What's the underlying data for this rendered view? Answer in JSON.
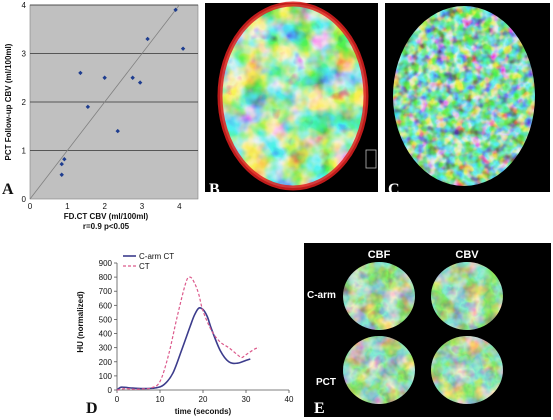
{
  "figure": {
    "panel_labels": [
      "A",
      "B",
      "C",
      "D",
      "E"
    ]
  },
  "chart_data": [
    {
      "type": "scatter",
      "panel": "A",
      "xlabel": "FD.CT CBV (ml/100ml)",
      "ylabel": "PCT Follow-up CBV (ml/100ml)",
      "caption": "r=0.9 p<0.05",
      "xlim": [
        0,
        4.5
      ],
      "ylim": [
        0,
        4.0
      ],
      "xticks": [
        "0",
        "1",
        "2",
        "3",
        "4"
      ],
      "yticks": [
        "0",
        "1",
        "2",
        "3",
        "4"
      ],
      "grid": true,
      "identity_line": true,
      "points": [
        [
          0.85,
          0.5
        ],
        [
          0.85,
          0.72
        ],
        [
          0.92,
          0.82
        ],
        [
          1.35,
          2.6
        ],
        [
          1.55,
          1.9
        ],
        [
          2.0,
          2.5
        ],
        [
          2.35,
          1.4
        ],
        [
          2.75,
          2.5
        ],
        [
          2.95,
          2.4
        ],
        [
          3.15,
          3.3
        ],
        [
          3.9,
          3.9
        ],
        [
          4.1,
          3.1
        ]
      ]
    },
    {
      "type": "line",
      "panel": "D",
      "xlabel": "time (seconds)",
      "ylabel": "HU (normalized)",
      "xlim": [
        0,
        40
      ],
      "ylim": [
        0,
        900
      ],
      "xticks": [
        "0",
        "10",
        "20",
        "30",
        "40"
      ],
      "yticks": [
        "0",
        "100",
        "200",
        "300",
        "400",
        "500",
        "600",
        "700",
        "800",
        "900"
      ],
      "legend_position": "top-left",
      "series": [
        {
          "name": "C-arm CT",
          "color": "#3c3c8c",
          "style": "solid",
          "x": [
            0,
            1,
            3,
            6,
            9,
            11,
            13,
            15,
            17,
            18,
            19,
            20,
            21,
            22,
            24,
            26,
            28,
            30,
            31
          ],
          "y": [
            0,
            20,
            15,
            10,
            15,
            40,
            120,
            280,
            450,
            530,
            580,
            570,
            520,
            430,
            280,
            200,
            190,
            210,
            220
          ]
        },
        {
          "name": "CT",
          "color": "#dc5a8c",
          "style": "dashed",
          "x": [
            0,
            2,
            4,
            6,
            8,
            10,
            12,
            14,
            16,
            17,
            18,
            19,
            20,
            22,
            24,
            26,
            28,
            29,
            30,
            32,
            33
          ],
          "y": [
            0,
            10,
            5,
            8,
            15,
            60,
            250,
            520,
            760,
            800,
            760,
            680,
            560,
            420,
            340,
            300,
            250,
            230,
            250,
            290,
            300
          ]
        }
      ]
    }
  ],
  "panel_e": {
    "column_labels": [
      "CBF",
      "CBV"
    ],
    "row_labels": [
      "C-arm",
      "PCT"
    ]
  },
  "colors": {
    "plot_bg": "#c0c0c0",
    "scan_bg": "#000000",
    "marker": "#1e3d8f"
  }
}
